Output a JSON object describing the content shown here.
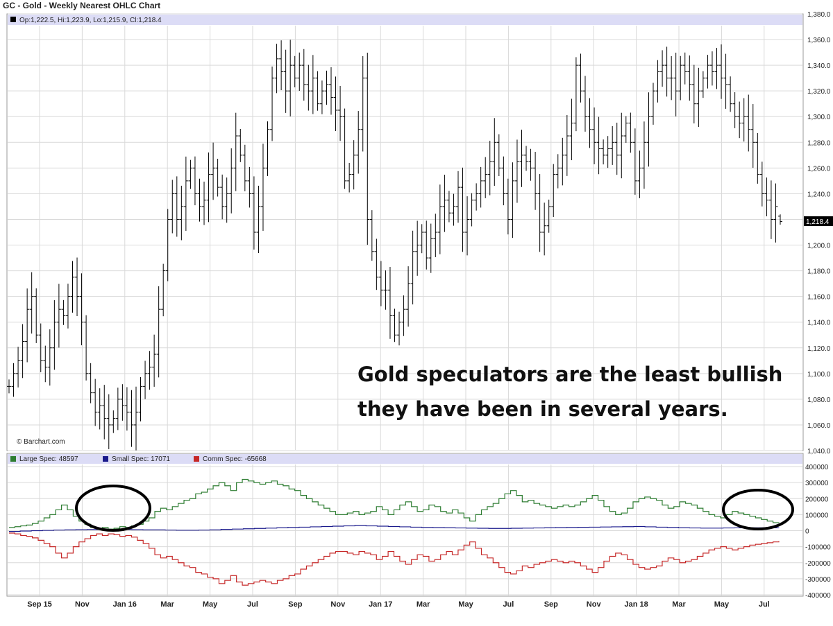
{
  "chart_title": "GC - Gold - Weekly Nearest OHLC Chart",
  "watermark": "© Barchart.com",
  "annotation": {
    "line1": "Gold speculators are the least bullish",
    "line2": "they have been in several years."
  },
  "colors": {
    "price_bars": "#000000",
    "header_band": "#dcdcf6",
    "grid": "#d9d9d9",
    "large_spec": "#2e7d32",
    "small_spec": "#1a1a8c",
    "comm_spec": "#c62828",
    "circles": "#000000",
    "last_price_box": "#000000"
  },
  "chart_data": [
    {
      "type": "ohlc",
      "title": "GC - Gold - Weekly Nearest OHLC Chart",
      "info": "Op:1,222.5, Hi:1,223.9, Lo:1,215.9, Cl:1,218.4",
      "last_price_label": "1,218.4",
      "last_ohlc": {
        "open": 1222.5,
        "high": 1223.9,
        "low": 1215.9,
        "close": 1218.4
      },
      "ylim": [
        1040,
        1380
      ],
      "y_ticks": [
        1040,
        1060,
        1080,
        1100,
        1120,
        1140,
        1160,
        1180,
        1200,
        1220,
        1240,
        1260,
        1280,
        1300,
        1320,
        1340,
        1360,
        1380
      ],
      "y_tick_labels": [
        "1,040.0",
        "1,060.0",
        "1,080.0",
        "1,100.0",
        "1,120.0",
        "1,140.0",
        "1,160.0",
        "1,180.0",
        "1,200.0",
        "1,220.0",
        "1,240.0",
        "1,260.0",
        "1,280.0",
        "1,300.0",
        "1,320.0",
        "1,340.0",
        "1,360.0",
        "1,380.0"
      ],
      "x_axis_labels": [
        "Sep 15",
        "Nov",
        "Jan 16",
        "Mar",
        "May",
        "Jul",
        "Sep",
        "Nov",
        "Jan 17",
        "Mar",
        "May",
        "Jul",
        "Sep",
        "Nov",
        "Jan 18",
        "Mar",
        "May",
        "Jul"
      ],
      "grid": true,
      "legend": "top-left",
      "weekly_closes": [
        1090,
        1100,
        1110,
        1125,
        1150,
        1160,
        1130,
        1110,
        1105,
        1120,
        1140,
        1150,
        1145,
        1160,
        1175,
        1160,
        1140,
        1100,
        1085,
        1070,
        1075,
        1065,
        1060,
        1065,
        1080,
        1075,
        1070,
        1060,
        1070,
        1090,
        1100,
        1105,
        1115,
        1150,
        1180,
        1220,
        1240,
        1220,
        1230,
        1250,
        1260,
        1240,
        1230,
        1235,
        1255,
        1260,
        1245,
        1230,
        1240,
        1260,
        1285,
        1270,
        1250,
        1240,
        1210,
        1230,
        1260,
        1290,
        1330,
        1345,
        1335,
        1320,
        1340,
        1330,
        1340,
        1325,
        1320,
        1330,
        1310,
        1320,
        1325,
        1315,
        1305,
        1300,
        1250,
        1255,
        1270,
        1290,
        1330,
        1220,
        1195,
        1175,
        1165,
        1165,
        1145,
        1130,
        1140,
        1150,
        1170,
        1195,
        1200,
        1210,
        1190,
        1205,
        1210,
        1230,
        1235,
        1225,
        1230,
        1245,
        1210,
        1220,
        1235,
        1240,
        1250,
        1255,
        1265,
        1280,
        1260,
        1240,
        1220,
        1250,
        1265,
        1270,
        1265,
        1260,
        1240,
        1210,
        1215,
        1230,
        1255,
        1260,
        1270,
        1285,
        1295,
        1340,
        1320,
        1300,
        1290,
        1280,
        1275,
        1270,
        1275,
        1280,
        1270,
        1285,
        1295,
        1280,
        1250,
        1260,
        1280,
        1300,
        1320,
        1335,
        1340,
        1330,
        1330,
        1320,
        1340,
        1335,
        1325,
        1310,
        1320,
        1330,
        1340,
        1335,
        1340,
        1330,
        1325,
        1310,
        1300,
        1295,
        1300,
        1290,
        1280,
        1255,
        1240,
        1235,
        1220,
        1230,
        1218.4
      ]
    },
    {
      "type": "line",
      "title": "",
      "series": [
        {
          "name": "Large Spec: 48597",
          "values": [
            20000,
            25000,
            30000,
            35000,
            45000,
            60000,
            80000,
            100000,
            130000,
            160000,
            130000,
            90000,
            60000,
            40000,
            20000,
            10000,
            20000,
            10000,
            15000,
            25000,
            20000,
            30000,
            40000,
            60000,
            80000,
            120000,
            140000,
            130000,
            150000,
            170000,
            190000,
            200000,
            230000,
            240000,
            260000,
            280000,
            300000,
            280000,
            250000,
            300000,
            320000,
            310000,
            300000,
            290000,
            300000,
            310000,
            290000,
            280000,
            260000,
            250000,
            220000,
            200000,
            180000,
            160000,
            140000,
            120000,
            100000,
            100000,
            110000,
            120000,
            100000,
            110000,
            120000,
            150000,
            130000,
            100000,
            130000,
            160000,
            180000,
            150000,
            120000,
            130000,
            160000,
            150000,
            120000,
            110000,
            130000,
            110000,
            80000,
            60000,
            100000,
            130000,
            150000,
            170000,
            200000,
            230000,
            250000,
            220000,
            180000,
            190000,
            170000,
            160000,
            150000,
            140000,
            150000,
            160000,
            150000,
            160000,
            180000,
            200000,
            220000,
            190000,
            150000,
            120000,
            100000,
            110000,
            140000,
            180000,
            200000,
            210000,
            200000,
            190000,
            160000,
            140000,
            150000,
            180000,
            170000,
            160000,
            140000,
            120000,
            100000,
            90000,
            80000,
            100000,
            120000,
            110000,
            100000,
            90000,
            80000,
            70000,
            60000,
            50000,
            48597
          ]
        },
        {
          "name": "Small Spec: 17071",
          "values": [
            -5000,
            -2000,
            0,
            2000,
            4000,
            5000,
            6000,
            7000,
            8000,
            8000,
            7000,
            6000,
            5000,
            5000,
            4000,
            3000,
            3000,
            4000,
            5000,
            8000,
            10000,
            12000,
            14000,
            16000,
            18000,
            20000,
            22000,
            24000,
            26000,
            28000,
            30000,
            32000,
            30000,
            28000,
            26000,
            24000,
            22000,
            20000,
            19000,
            18000,
            17000,
            16000,
            15000,
            14000,
            14000,
            15000,
            16000,
            17000,
            18000,
            19000,
            20000,
            21000,
            22000,
            23000,
            24000,
            25000,
            26000,
            24000,
            22000,
            20000,
            18000,
            17000,
            16000,
            16000,
            17000,
            17500,
            18000,
            18000,
            17500,
            17071
          ]
        },
        {
          "name": "Comm Spec: -65668",
          "values": [
            -15000,
            -20000,
            -30000,
            -35000,
            -45000,
            -60000,
            -80000,
            -100000,
            -140000,
            -170000,
            -140000,
            -100000,
            -70000,
            -50000,
            -30000,
            -20000,
            -30000,
            -20000,
            -25000,
            -35000,
            -30000,
            -40000,
            -60000,
            -80000,
            -110000,
            -150000,
            -170000,
            -160000,
            -180000,
            -200000,
            -220000,
            -230000,
            -260000,
            -270000,
            -290000,
            -300000,
            -330000,
            -310000,
            -280000,
            -320000,
            -340000,
            -330000,
            -320000,
            -310000,
            -320000,
            -330000,
            -310000,
            -300000,
            -280000,
            -270000,
            -240000,
            -220000,
            -200000,
            -180000,
            -160000,
            -140000,
            -130000,
            -130000,
            -140000,
            -150000,
            -130000,
            -140000,
            -150000,
            -180000,
            -160000,
            -130000,
            -160000,
            -190000,
            -210000,
            -180000,
            -150000,
            -160000,
            -190000,
            -180000,
            -150000,
            -130000,
            -150000,
            -120000,
            -90000,
            -70000,
            -110000,
            -150000,
            -170000,
            -200000,
            -230000,
            -260000,
            -270000,
            -250000,
            -220000,
            -230000,
            -210000,
            -200000,
            -190000,
            -180000,
            -190000,
            -200000,
            -190000,
            -200000,
            -220000,
            -240000,
            -260000,
            -230000,
            -190000,
            -160000,
            -140000,
            -150000,
            -180000,
            -210000,
            -230000,
            -240000,
            -230000,
            -220000,
            -190000,
            -170000,
            -180000,
            -200000,
            -190000,
            -180000,
            -160000,
            -140000,
            -120000,
            -110000,
            -100000,
            -110000,
            -120000,
            -110000,
            -100000,
            -90000,
            -85000,
            -80000,
            -75000,
            -70000,
            -65668
          ]
        }
      ],
      "ylim": [
        -400000,
        400000
      ],
      "y_ticks": [
        -400000,
        -300000,
        -200000,
        -100000,
        0,
        100000,
        200000,
        300000,
        400000
      ],
      "y_tick_labels": [
        "-400000",
        "-300000",
        "-200000",
        "-100000",
        "0",
        "100000",
        "200000",
        "300000",
        "400000"
      ],
      "grid": true,
      "legend": "top-left",
      "annotations": [
        "circle around Nov–Jan 16 crossover",
        "circle around May–Jul end"
      ]
    }
  ]
}
